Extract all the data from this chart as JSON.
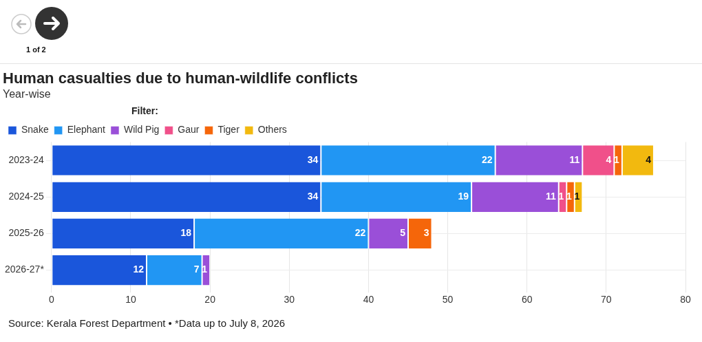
{
  "chart_data": {
    "type": "bar",
    "title": "Human casualties due to human-wildlife conflicts",
    "subtitle": "Year-wise",
    "legend_title": "Filter:",
    "orientation": "horizontal",
    "stacked": true,
    "categories": [
      "2023-24",
      "2024-25",
      "2025-26",
      "2026-27*"
    ],
    "series": [
      {
        "name": "Snake",
        "color": "#1a56db",
        "values": [
          34,
          34,
          18,
          12
        ]
      },
      {
        "name": "Elephant",
        "color": "#2196f3",
        "values": [
          22,
          19,
          22,
          7
        ]
      },
      {
        "name": "Wild Pig",
        "color": "#9a4fd8",
        "values": [
          11,
          11,
          5,
          1
        ]
      },
      {
        "name": "Gaur",
        "color": "#f0508a",
        "values": [
          4,
          1,
          null,
          null
        ]
      },
      {
        "name": "Tiger",
        "color": "#f5660a",
        "values": [
          1,
          1,
          3,
          null
        ]
      },
      {
        "name": "Others",
        "color": "#f2b90f",
        "values": [
          4,
          1,
          null,
          null
        ]
      }
    ],
    "xlim": [
      0,
      80
    ],
    "xticks": [
      0,
      10,
      20,
      30,
      40,
      50,
      60,
      70,
      80
    ],
    "grid": true,
    "legend": "top left",
    "data_labels": true,
    "annotations": [
      "1 of 2",
      "Source: Kerala Forest Department • *Data up to July 8, 2026"
    ]
  }
}
